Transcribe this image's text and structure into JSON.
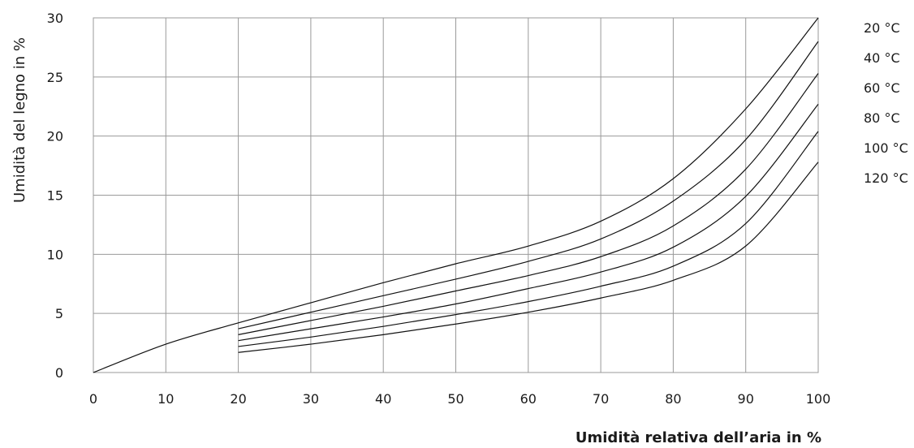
{
  "chart_data": {
    "type": "line",
    "title": "",
    "xlabel": "Umidità relativa dell’aria in %",
    "ylabel": "Umidità del legno in %",
    "xlim": [
      0,
      100
    ],
    "ylim": [
      0,
      30
    ],
    "x_ticks": [
      "0",
      "10",
      "20",
      "30",
      "40",
      "50",
      "60",
      "70",
      "80",
      "90",
      "100"
    ],
    "y_ticks": [
      "0",
      "5",
      "10",
      "15",
      "20",
      "25",
      "30"
    ],
    "grid": true,
    "legend_position": "right",
    "series": [
      {
        "name": "20 °C",
        "x": [
          0,
          10,
          20,
          30,
          40,
          50,
          60,
          70,
          80,
          90,
          100
        ],
        "y": [
          0,
          2.4,
          4.2,
          5.9,
          7.6,
          9.2,
          10.7,
          12.8,
          16.4,
          22.3,
          30.0
        ]
      },
      {
        "name": "40 °C",
        "x": [
          20,
          30,
          40,
          50,
          60,
          70,
          80,
          90,
          100
        ],
        "y": [
          3.7,
          5.1,
          6.5,
          7.9,
          9.4,
          11.3,
          14.5,
          19.7,
          28.0
        ]
      },
      {
        "name": "60 °C",
        "x": [
          20,
          30,
          40,
          50,
          60,
          70,
          80,
          90,
          100
        ],
        "y": [
          3.2,
          4.4,
          5.6,
          6.9,
          8.2,
          9.8,
          12.4,
          17.2,
          25.3
        ]
      },
      {
        "name": "80 °C",
        "x": [
          20,
          30,
          40,
          50,
          60,
          70,
          80,
          90,
          100
        ],
        "y": [
          2.7,
          3.7,
          4.7,
          5.8,
          7.1,
          8.5,
          10.6,
          14.9,
          22.7
        ]
      },
      {
        "name": "100 °C",
        "x": [
          20,
          30,
          40,
          50,
          60,
          70,
          80,
          90,
          100
        ],
        "y": [
          2.2,
          3.0,
          3.9,
          4.9,
          6.0,
          7.3,
          9.0,
          12.6,
          20.4
        ]
      },
      {
        "name": "120 °C",
        "x": [
          20,
          30,
          40,
          50,
          60,
          70,
          80,
          90,
          100
        ],
        "y": [
          1.7,
          2.4,
          3.2,
          4.1,
          5.1,
          6.3,
          7.8,
          10.7,
          17.8
        ]
      }
    ]
  },
  "colors": {
    "grid": "#9a9a9a",
    "curve": "#111111",
    "text": "#1a1a1a"
  }
}
